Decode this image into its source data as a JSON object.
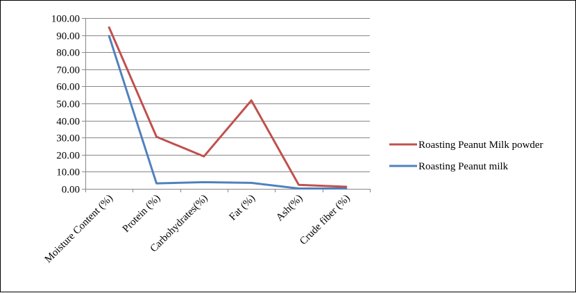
{
  "chart_data": {
    "type": "line",
    "categories": [
      "Moisture Content  (%)",
      "Protein (%)",
      "Carbohydrates(%)",
      "Fat (%)",
      "Ash(%)",
      "Crude fiber (%)"
    ],
    "series": [
      {
        "name": "Roasting Peanut Milk powder",
        "color": "#c0504d",
        "values": [
          94.5,
          30.5,
          19.0,
          51.8,
          2.3,
          1.2
        ]
      },
      {
        "name": "Roasting Peanut milk",
        "color": "#4f81bd",
        "values": [
          89.5,
          3.2,
          3.9,
          3.5,
          0.2,
          0.2
        ]
      }
    ],
    "y_ticks": [
      "0.00",
      "10.00",
      "20.00",
      "30.00",
      "40.00",
      "50.00",
      "60.00",
      "70.00",
      "80.00",
      "90.00",
      "100.00"
    ],
    "ylim": [
      0,
      100
    ],
    "grid": "horizontal",
    "legend_position": "right"
  }
}
